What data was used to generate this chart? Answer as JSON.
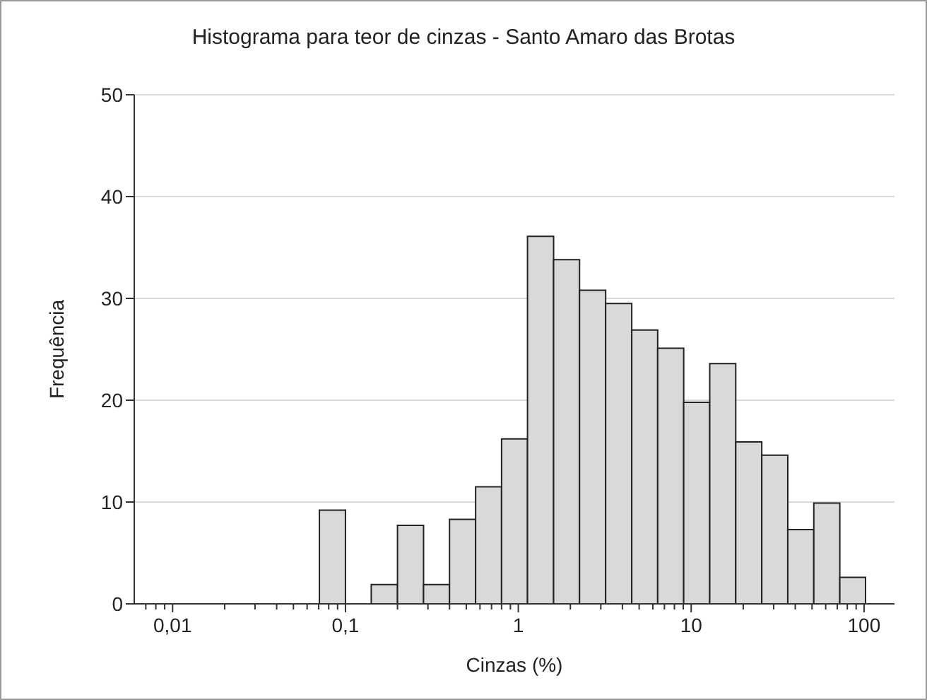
{
  "chart_data": {
    "type": "histogram",
    "title": "Histograma para teor de cinzas - Santo Amaro das Brotas",
    "xlabel": "Cinzas (%)",
    "ylabel": "Frequência",
    "bins": [
      0.0707,
      0.1,
      0.141,
      0.2,
      0.283,
      0.4,
      0.566,
      0.8,
      1.13,
      1.6,
      2.26,
      3.2,
      4.53,
      6.4,
      9.05,
      12.8,
      18.1,
      25.6,
      36.2,
      51.2,
      72.4,
      102
    ],
    "values": [
      9.2,
      0,
      1.9,
      7.7,
      1.9,
      8.3,
      11.5,
      16.2,
      36.1,
      33.8,
      30.8,
      29.5,
      26.9,
      25.1,
      19.8,
      23.6,
      15.9,
      14.6,
      7.3,
      9.9,
      2.6
    ],
    "color": "#d9d9d9",
    "log": "x",
    "grid": "y",
    "xlim": [
      0.006,
      150
    ],
    "ylim": [
      0,
      50
    ],
    "yticks": [
      0,
      10,
      20,
      30,
      40,
      50
    ],
    "xticks": [
      {
        "value": 0.007,
        "label": null
      },
      {
        "value": 0.008,
        "label": null
      },
      {
        "value": 0.009,
        "label": null
      },
      {
        "value": 0.01,
        "label": "0,01"
      },
      {
        "value": 0.02,
        "label": null
      },
      {
        "value": 0.03,
        "label": null
      },
      {
        "value": 0.04,
        "label": null
      },
      {
        "value": 0.05,
        "label": null
      },
      {
        "value": 0.06,
        "label": null
      },
      {
        "value": 0.07,
        "label": null
      },
      {
        "value": 0.08,
        "label": null
      },
      {
        "value": 0.09,
        "label": null
      },
      {
        "value": 0.1,
        "label": "0,1"
      },
      {
        "value": 0.2,
        "label": null
      },
      {
        "value": 0.3,
        "label": null
      },
      {
        "value": 0.4,
        "label": null
      },
      {
        "value": 0.5,
        "label": null
      },
      {
        "value": 0.6,
        "label": null
      },
      {
        "value": 0.7,
        "label": null
      },
      {
        "value": 0.8,
        "label": null
      },
      {
        "value": 0.9,
        "label": null
      },
      {
        "value": 1,
        "label": "1"
      },
      {
        "value": 2,
        "label": null
      },
      {
        "value": 3,
        "label": null
      },
      {
        "value": 4,
        "label": null
      },
      {
        "value": 5,
        "label": null
      },
      {
        "value": 6,
        "label": null
      },
      {
        "value": 7,
        "label": null
      },
      {
        "value": 8,
        "label": null
      },
      {
        "value": 9,
        "label": null
      },
      {
        "value": 10,
        "label": "10"
      },
      {
        "value": 20,
        "label": null
      },
      {
        "value": 30,
        "label": null
      },
      {
        "value": 40,
        "label": null
      },
      {
        "value": 50,
        "label": null
      },
      {
        "value": 60,
        "label": null
      },
      {
        "value": 70,
        "label": null
      },
      {
        "value": 80,
        "label": null
      },
      {
        "value": 90,
        "label": null
      },
      {
        "value": 100,
        "label": "100"
      }
    ]
  }
}
